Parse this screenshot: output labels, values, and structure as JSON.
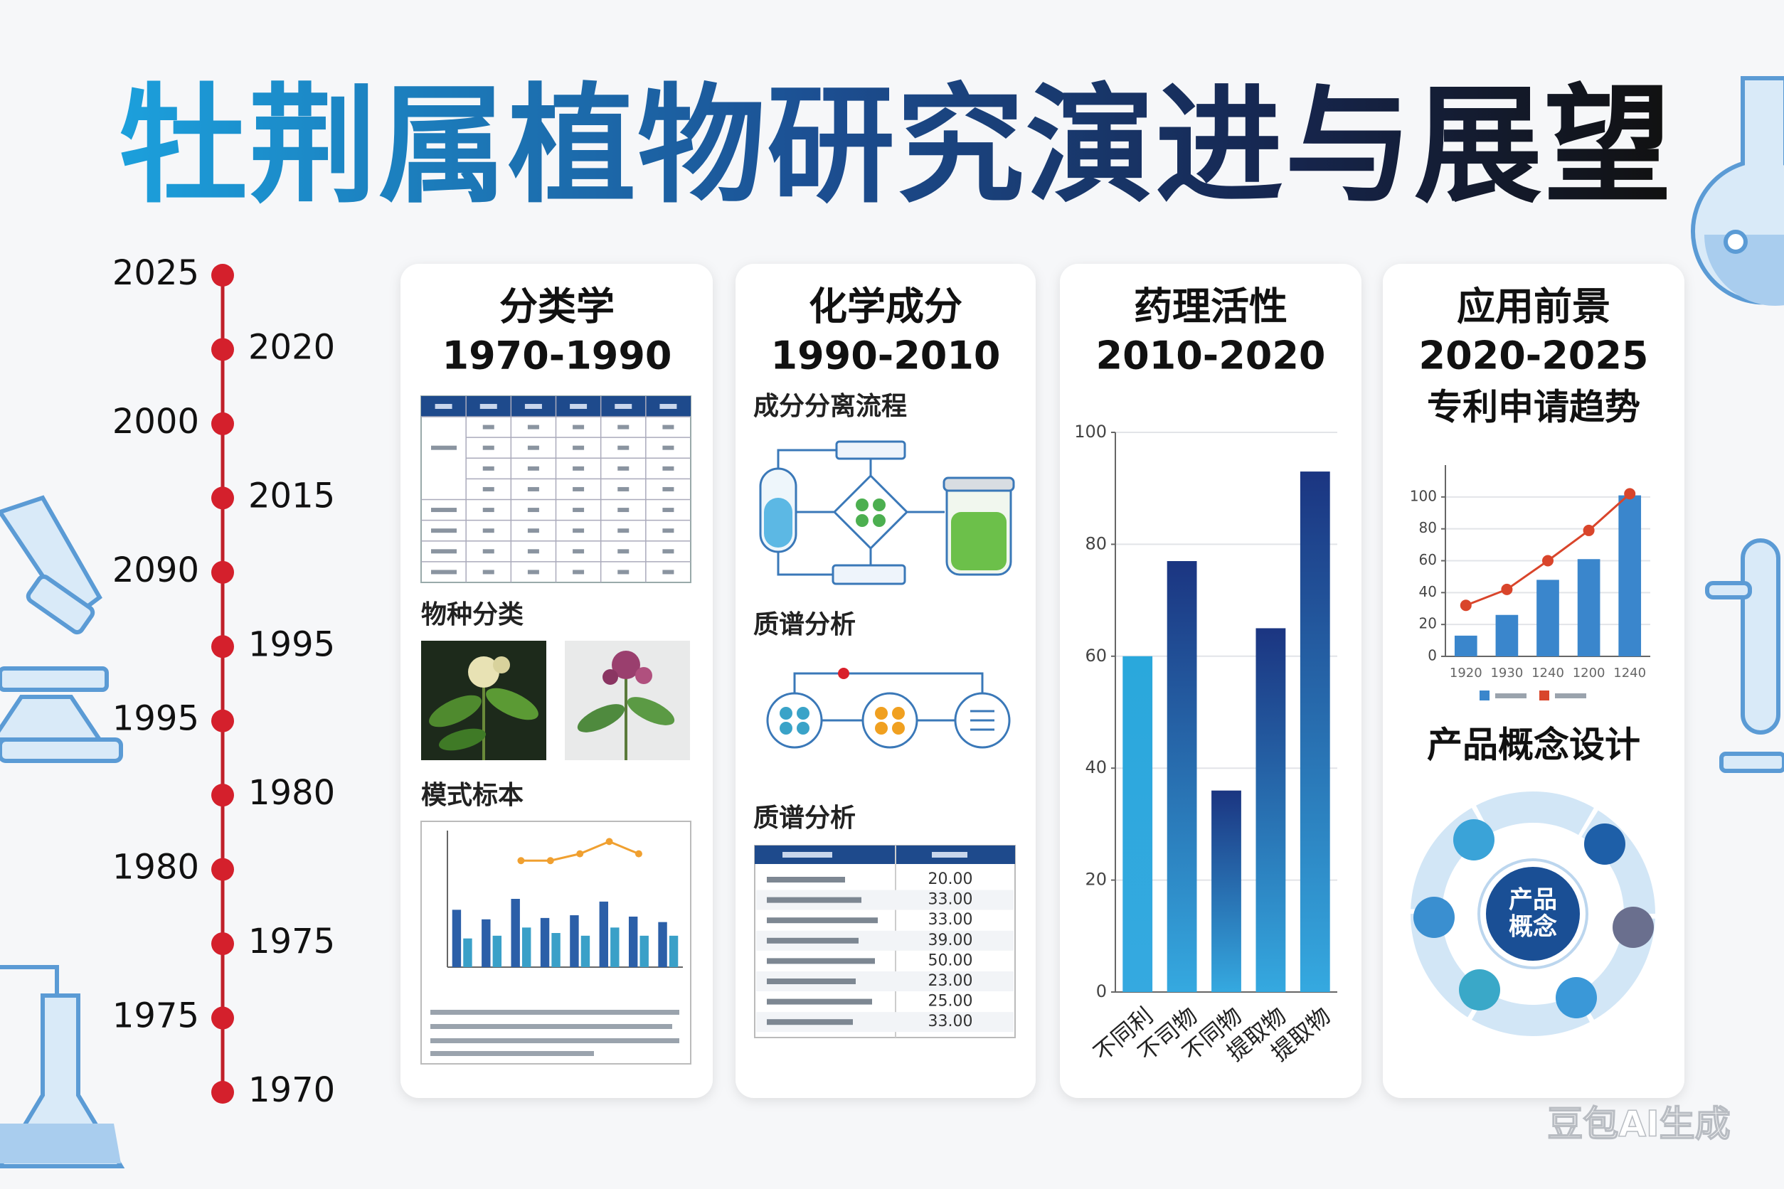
{
  "title": "牡荆属植物研究演进与展望",
  "timeline": [
    "2025",
    "2020",
    "2000",
    "2015",
    "2090",
    "1995",
    "1995",
    "1980",
    "1980",
    "1975",
    "1975",
    "1970"
  ],
  "panels": [
    {
      "title": "分类学",
      "period": "1970-1990",
      "sections": [
        "物种分类",
        "模式标本"
      ]
    },
    {
      "title": "化学成分",
      "period": "1990-2010",
      "sections": [
        "成分分离流程",
        "质谱分析",
        "质谱分析"
      ],
      "table_values": [
        "20.00",
        "33.00",
        "33.00",
        "39.00",
        "50.00",
        "23.00",
        "25.00",
        "33.00"
      ]
    },
    {
      "title": "药理活性",
      "period": "2010-2020"
    },
    {
      "title": "应用前景",
      "period": "2020-2025",
      "sections": [
        "专利申请趋势",
        "产品概念设计"
      ],
      "concept": [
        "产品",
        "概念"
      ]
    }
  ],
  "chart_data": [
    {
      "type": "bar",
      "categories": [
        "不同利",
        "不司物",
        "不同物",
        "提取物",
        "提取物"
      ],
      "values": [
        60,
        77,
        36,
        65,
        93
      ],
      "colors": [
        "#2aa8dc",
        "#1b3581",
        "#1b3581",
        "#1b3581",
        "#1b3581"
      ],
      "ylim": [
        0,
        100
      ],
      "yticks": [
        0,
        20,
        40,
        60,
        80,
        100
      ],
      "grid": true
    },
    {
      "type": "bar_line",
      "categories": [
        "1920",
        "1930",
        "1240",
        "1200",
        "1240"
      ],
      "series": [
        {
          "type": "bar",
          "color": "#3a86cc",
          "values": [
            13,
            26,
            48,
            61,
            101
          ]
        },
        {
          "type": "line",
          "color": "#d9452b",
          "values": [
            32,
            42,
            60,
            79,
            102
          ]
        }
      ],
      "ylim": [
        0,
        120
      ],
      "yticks": [
        0,
        20,
        40,
        60,
        80,
        100
      ],
      "grid": true
    },
    {
      "type": "bar_line",
      "series": [
        {
          "type": "bar",
          "color": "#2b5fa8",
          "values": [
            42,
            35,
            50,
            36,
            38,
            48,
            37,
            33
          ]
        },
        {
          "type": "bar",
          "color": "#3aa0c8",
          "values": [
            21,
            23,
            29,
            25,
            23,
            29,
            23,
            23
          ]
        },
        {
          "type": "line",
          "color": "#f0a030",
          "values": [
            null,
            null,
            78,
            78,
            83,
            92,
            83,
            null
          ]
        }
      ],
      "ylim": [
        0,
        100
      ],
      "grid": false
    }
  ],
  "watermark": "豆包AI生成"
}
